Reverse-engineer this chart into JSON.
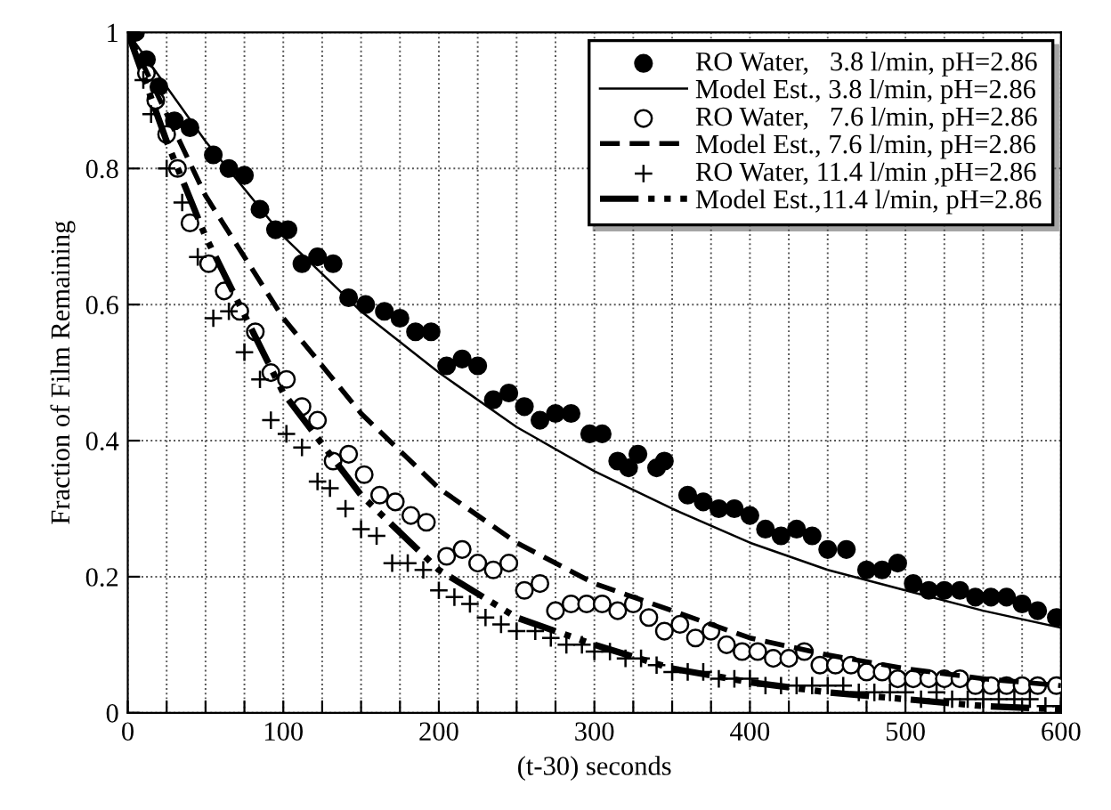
{
  "chart_data": {
    "type": "scatter",
    "xlabel": "(t-30) seconds",
    "ylabel": "Fraction of Film Remaining",
    "xlim": [
      0,
      600
    ],
    "ylim": [
      0,
      1
    ],
    "xticks": [
      0,
      {
        "value": 25,
        "label": null
      },
      {
        "value": 50,
        "label": null
      },
      {
        "value": 75,
        "label": null
      },
      100,
      {
        "value": 125,
        "label": null
      },
      {
        "value": 150,
        "label": null
      },
      {
        "value": 175,
        "label": null
      },
      200,
      {
        "value": 225,
        "label": null
      },
      {
        "value": 250,
        "label": null
      },
      {
        "value": 275,
        "label": null
      },
      300,
      {
        "value": 325,
        "label": null
      },
      {
        "value": 350,
        "label": null
      },
      {
        "value": 375,
        "label": null
      },
      400,
      {
        "value": 425,
        "label": null
      },
      {
        "value": 450,
        "label": null
      },
      {
        "value": 475,
        "label": null
      },
      500,
      {
        "value": 525,
        "label": null
      },
      {
        "value": 550,
        "label": null
      },
      {
        "value": 575,
        "label": null
      },
      600
    ],
    "yticks": [
      0,
      0.2,
      0.4,
      0.6,
      0.8,
      1
    ],
    "grid": true,
    "legend": "top right",
    "series": [
      {
        "name": "RO Water,   3.8 l/min, pH=2.86",
        "marker": "circle",
        "color": "#000000",
        "x": [
          5,
          12,
          20,
          30,
          40,
          55,
          65,
          75,
          85,
          95,
          103,
          112,
          122,
          132,
          142,
          153,
          165,
          175,
          185,
          195,
          205,
          215,
          225,
          235,
          245,
          255,
          265,
          275,
          285,
          297,
          305,
          315,
          322,
          328,
          340,
          345,
          360,
          370,
          380,
          390,
          400,
          410,
          420,
          430,
          440,
          450,
          462,
          475,
          485,
          495,
          505,
          515,
          525,
          535,
          545,
          555,
          565,
          575,
          585,
          597
        ],
        "values": [
          1.0,
          0.96,
          0.92,
          0.87,
          0.86,
          0.82,
          0.8,
          0.79,
          0.74,
          0.71,
          0.71,
          0.66,
          0.67,
          0.66,
          0.61,
          0.6,
          0.59,
          0.58,
          0.56,
          0.56,
          0.51,
          0.52,
          0.51,
          0.46,
          0.47,
          0.45,
          0.43,
          0.44,
          0.44,
          0.41,
          0.41,
          0.37,
          0.36,
          0.38,
          0.36,
          0.37,
          0.32,
          0.31,
          0.3,
          0.3,
          0.29,
          0.27,
          0.26,
          0.27,
          0.26,
          0.24,
          0.24,
          0.21,
          0.21,
          0.22,
          0.19,
          0.18,
          0.18,
          0.18,
          0.17,
          0.17,
          0.17,
          0.16,
          0.15,
          0.14
        ]
      },
      {
        "name": "Model Est., 3.8 l/min, pH=2.86",
        "type": "line",
        "line_style": "solid",
        "color": "#000000",
        "x": [
          0,
          50,
          100,
          150,
          200,
          250,
          300,
          350,
          400,
          450,
          500,
          550,
          600
        ],
        "values": [
          1,
          0.84,
          0.7,
          0.59,
          0.5,
          0.42,
          0.355,
          0.3,
          0.25,
          0.21,
          0.18,
          0.15,
          0.125
        ]
      },
      {
        "name": "RO Water,   7.6 l/min, pH=2.86",
        "marker": "circle",
        "color": "#000000",
        "x": [
          12,
          18,
          25,
          32,
          40,
          52,
          62,
          72,
          82,
          92,
          102,
          112,
          122,
          132,
          142,
          152,
          162,
          172,
          182,
          192,
          205,
          215,
          225,
          235,
          245,
          255,
          265,
          275,
          285,
          295,
          305,
          315,
          325,
          335,
          345,
          355,
          365,
          375,
          385,
          395,
          405,
          415,
          425,
          435,
          445,
          455,
          465,
          475,
          485,
          495,
          505,
          515,
          525,
          535,
          545,
          555,
          565,
          575,
          585,
          597
        ],
        "values": [
          0.94,
          0.9,
          0.85,
          0.8,
          0.72,
          0.66,
          0.62,
          0.59,
          0.56,
          0.5,
          0.49,
          0.45,
          0.43,
          0.37,
          0.38,
          0.35,
          0.32,
          0.31,
          0.29,
          0.28,
          0.23,
          0.24,
          0.22,
          0.21,
          0.22,
          0.18,
          0.19,
          0.15,
          0.16,
          0.16,
          0.16,
          0.15,
          0.16,
          0.14,
          0.12,
          0.13,
          0.11,
          0.12,
          0.1,
          0.09,
          0.09,
          0.08,
          0.08,
          0.09,
          0.07,
          0.07,
          0.07,
          0.06,
          0.06,
          0.05,
          0.05,
          0.05,
          0.05,
          0.05,
          0.04,
          0.04,
          0.04,
          0.04,
          0.04,
          0.04
        ]
      },
      {
        "name": "Model Est., 7.6 l/min, pH=2.86",
        "type": "line",
        "line_style": "dashed",
        "color": "#000000",
        "x": [
          0,
          50,
          100,
          150,
          200,
          250,
          300,
          350,
          400,
          450,
          500,
          550,
          600
        ],
        "values": [
          1,
          0.76,
          0.58,
          0.44,
          0.33,
          0.25,
          0.19,
          0.15,
          0.11,
          0.085,
          0.065,
          0.05,
          0.04
        ]
      },
      {
        "name": "RO Water, 11.4 l/min ,pH=2.86",
        "marker": "cross",
        "color": "#000000",
        "x": [
          10,
          15,
          25,
          35,
          45,
          55,
          65,
          75,
          85,
          92,
          102,
          112,
          122,
          130,
          140,
          150,
          160,
          170,
          180,
          190,
          200,
          210,
          220,
          230,
          240,
          250,
          262,
          272,
          282,
          292,
          300,
          310,
          320,
          330,
          340,
          350,
          360,
          370,
          380,
          390,
          400,
          410,
          420,
          430,
          440,
          450,
          460,
          470,
          480,
          490,
          500,
          510,
          520,
          530,
          540,
          550,
          560,
          570,
          580,
          590,
          600
        ],
        "values": [
          0.93,
          0.88,
          0.8,
          0.75,
          0.67,
          0.58,
          0.59,
          0.53,
          0.49,
          0.43,
          0.41,
          0.39,
          0.34,
          0.33,
          0.3,
          0.27,
          0.26,
          0.22,
          0.22,
          0.21,
          0.18,
          0.17,
          0.16,
          0.14,
          0.13,
          0.12,
          0.12,
          0.11,
          0.1,
          0.1,
          0.09,
          0.09,
          0.08,
          0.08,
          0.07,
          0.06,
          0.06,
          0.06,
          0.05,
          0.05,
          0.05,
          0.04,
          0.04,
          0.04,
          0.04,
          0.04,
          0.04,
          0.03,
          0.03,
          0.03,
          0.03,
          0.02,
          0.03,
          0.02,
          0.02,
          0.02,
          0.02,
          0.02,
          0.02,
          0.01,
          0.01
        ]
      },
      {
        "name": "Model Est.,11.4 l/min, pH=2.86",
        "type": "line",
        "line_style": "dashdot",
        "color": "#000000",
        "x": [
          0,
          25,
          50,
          100,
          150,
          200,
          250,
          300,
          350,
          400,
          450,
          500,
          550,
          600
        ],
        "values": [
          1,
          0.84,
          0.7,
          0.47,
          0.32,
          0.21,
          0.14,
          0.1,
          0.065,
          0.045,
          0.03,
          0.02,
          0.01,
          0.005
        ]
      }
    ]
  }
}
